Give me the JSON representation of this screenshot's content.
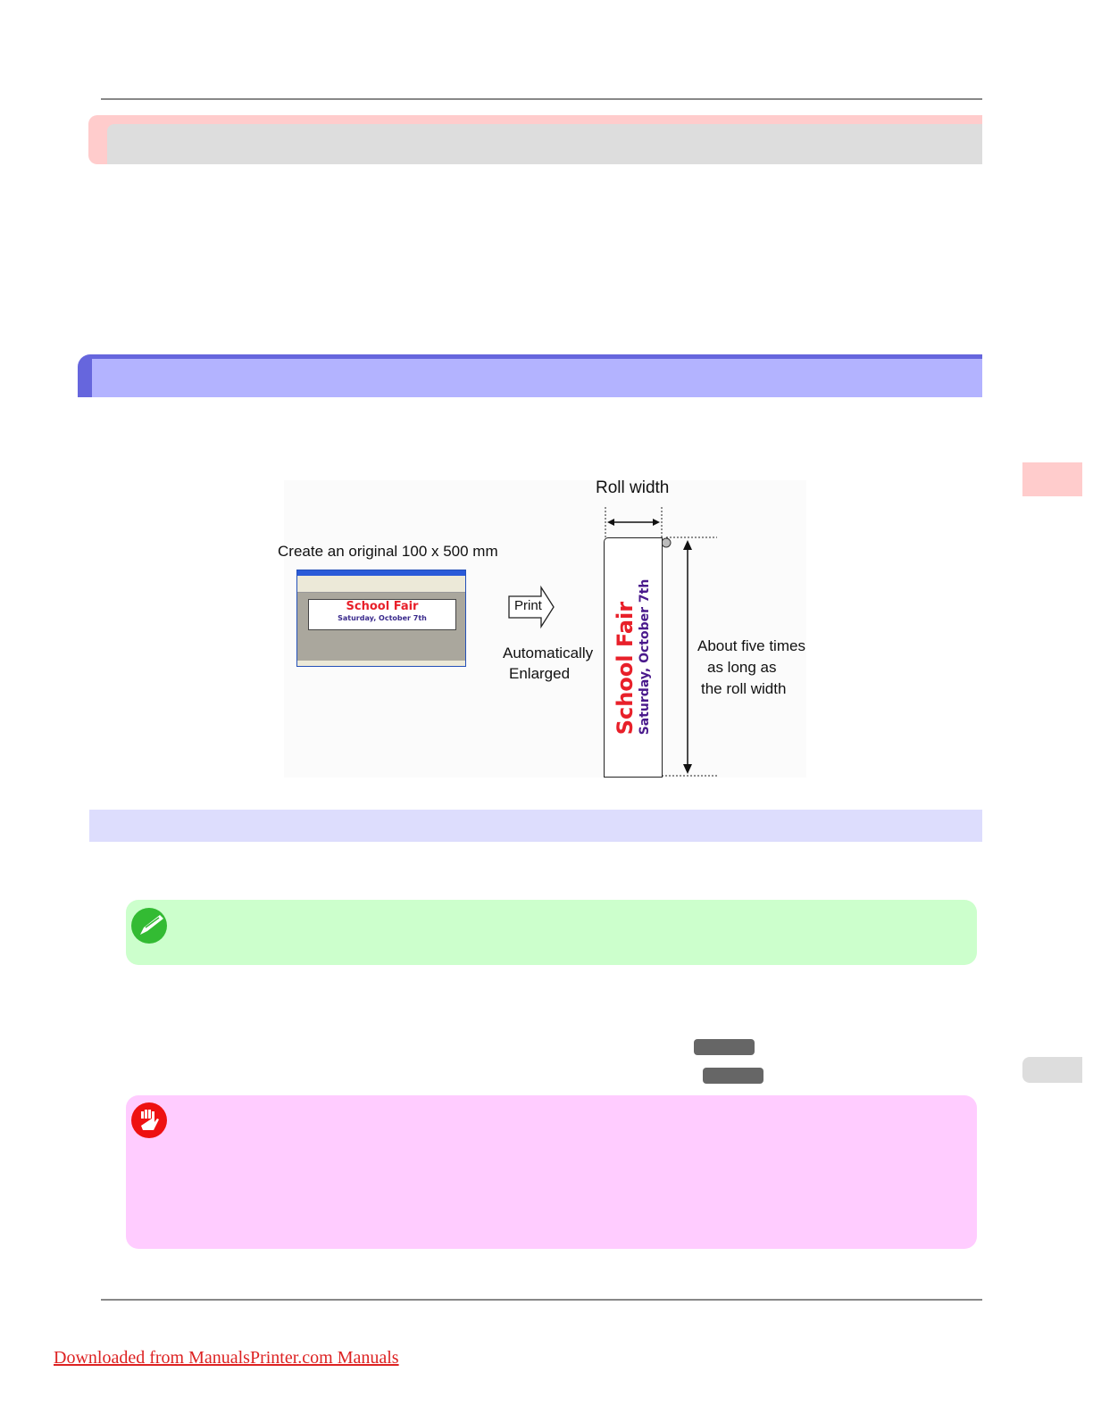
{
  "figure": {
    "original_label": "Create an original 100 x 500 mm",
    "print_label": "Print",
    "enlarged_label_line1": "Automatically",
    "enlarged_label_line2": "Enlarged",
    "roll_width_label": "Roll width",
    "length_label_line1": "About five times",
    "length_label_line2": "as long as",
    "length_label_line3": "the roll width",
    "poster_title": "School Fair",
    "poster_subtitle": "Saturday, October 7th",
    "title_color": "#e8202a",
    "subtitle_color": "#4a1a8c"
  },
  "icons": {
    "note": "pencil-icon",
    "important": "hand-stop-icon"
  },
  "colors": {
    "heading1": "#ffcccc",
    "heading2": "#b3b3ff",
    "heading3": "#ddddfd",
    "note": "#ccffcc",
    "important": "#ffccff"
  },
  "footer": {
    "link_text": "Downloaded from ManualsPrinter.com Manuals"
  }
}
